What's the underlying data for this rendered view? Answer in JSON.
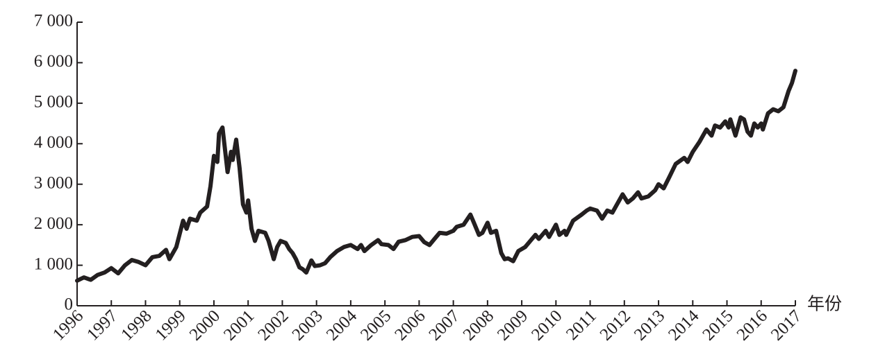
{
  "chart_data": {
    "type": "line",
    "x_label": "年份",
    "color": "#231f20",
    "xlim": [
      1996,
      2017
    ],
    "xticks": [
      1996,
      1997,
      1998,
      1999,
      2000,
      2001,
      2002,
      2003,
      2004,
      2005,
      2006,
      2007,
      2008,
      2009,
      2010,
      2011,
      2012,
      2013,
      2014,
      2015,
      2016,
      2017
    ],
    "ylim": [
      0,
      7000
    ],
    "yticks": [
      0,
      {
        "value": 1000,
        "label": "1 000"
      },
      {
        "value": 2000,
        "label": "2 000"
      },
      {
        "value": 3000,
        "label": "3 000"
      },
      {
        "value": 4000,
        "label": "4 000"
      },
      {
        "value": 5000,
        "label": "5 000"
      },
      {
        "value": 6000,
        "label": "6 000"
      },
      {
        "value": 7000,
        "label": "7 000"
      }
    ],
    "x": [
      1996.0,
      1996.2,
      1996.4,
      1996.6,
      1996.8,
      1997.0,
      1997.2,
      1997.4,
      1997.6,
      1997.8,
      1998.0,
      1998.2,
      1998.4,
      1998.6,
      1998.7,
      1998.9,
      1999.1,
      1999.2,
      1999.3,
      1999.5,
      1999.6,
      1999.8,
      1999.9,
      2000.0,
      2000.1,
      2000.15,
      2000.25,
      2000.4,
      2000.5,
      2000.55,
      2000.65,
      2000.75,
      2000.85,
      2000.95,
      2001.0,
      2001.1,
      2001.2,
      2001.3,
      2001.5,
      2001.6,
      2001.75,
      2001.85,
      2001.95,
      2002.1,
      2002.2,
      2002.3,
      2002.4,
      2002.5,
      2002.6,
      2002.7,
      2002.85,
      2002.95,
      2003.1,
      2003.25,
      2003.4,
      2003.6,
      2003.8,
      2004.0,
      2004.2,
      2004.3,
      2004.4,
      2004.6,
      2004.8,
      2004.9,
      2005.1,
      2005.25,
      2005.4,
      2005.6,
      2005.8,
      2006.0,
      2006.15,
      2006.3,
      2006.45,
      2006.6,
      2006.8,
      2007.0,
      2007.1,
      2007.3,
      2007.5,
      2007.6,
      2007.75,
      2007.85,
      2008.0,
      2008.1,
      2008.25,
      2008.4,
      2008.5,
      2008.6,
      2008.75,
      2008.9,
      2009.1,
      2009.25,
      2009.4,
      2009.5,
      2009.7,
      2009.8,
      2010.0,
      2010.1,
      2010.25,
      2010.3,
      2010.5,
      2010.75,
      2010.9,
      2011.0,
      2011.2,
      2011.35,
      2011.5,
      2011.65,
      2011.85,
      2011.95,
      2012.1,
      2012.25,
      2012.4,
      2012.5,
      2012.7,
      2012.9,
      2013.0,
      2013.15,
      2013.3,
      2013.5,
      2013.75,
      2013.85,
      2014.0,
      2014.2,
      2014.4,
      2014.55,
      2014.65,
      2014.8,
      2014.95,
      2015.05,
      2015.1,
      2015.25,
      2015.4,
      2015.5,
      2015.6,
      2015.7,
      2015.8,
      2015.9,
      2016.0,
      2016.05,
      2016.2,
      2016.35,
      2016.5,
      2016.65,
      2016.8,
      2016.9,
      2017.0
    ],
    "values": [
      620,
      700,
      640,
      760,
      820,
      930,
      800,
      1000,
      1130,
      1080,
      1000,
      1200,
      1230,
      1380,
      1150,
      1450,
      2100,
      1900,
      2150,
      2100,
      2300,
      2450,
      2950,
      3700,
      3550,
      4250,
      4400,
      3300,
      3800,
      3600,
      4100,
      3400,
      2500,
      2300,
      2600,
      1900,
      1600,
      1850,
      1800,
      1600,
      1150,
      1450,
      1600,
      1550,
      1400,
      1300,
      1150,
      950,
      900,
      820,
      1120,
      980,
      1000,
      1050,
      1200,
      1350,
      1450,
      1500,
      1400,
      1500,
      1350,
      1500,
      1620,
      1520,
      1500,
      1400,
      1580,
      1620,
      1700,
      1720,
      1570,
      1500,
      1650,
      1800,
      1780,
      1850,
      1950,
      2000,
      2250,
      2050,
      1750,
      1800,
      2050,
      1800,
      1850,
      1300,
      1150,
      1170,
      1100,
      1350,
      1450,
      1600,
      1750,
      1650,
      1850,
      1700,
      2000,
      1750,
      1850,
      1750,
      2100,
      2250,
      2350,
      2400,
      2350,
      2150,
      2350,
      2300,
      2600,
      2750,
      2550,
      2650,
      2800,
      2650,
      2700,
      2850,
      3000,
      2900,
      3150,
      3500,
      3650,
      3550,
      3800,
      4050,
      4350,
      4200,
      4450,
      4400,
      4550,
      4400,
      4600,
      4200,
      4650,
      4600,
      4300,
      4200,
      4500,
      4400,
      4500,
      4350,
      4750,
      4850,
      4800,
      4900,
      5300,
      5500,
      5800
    ]
  }
}
